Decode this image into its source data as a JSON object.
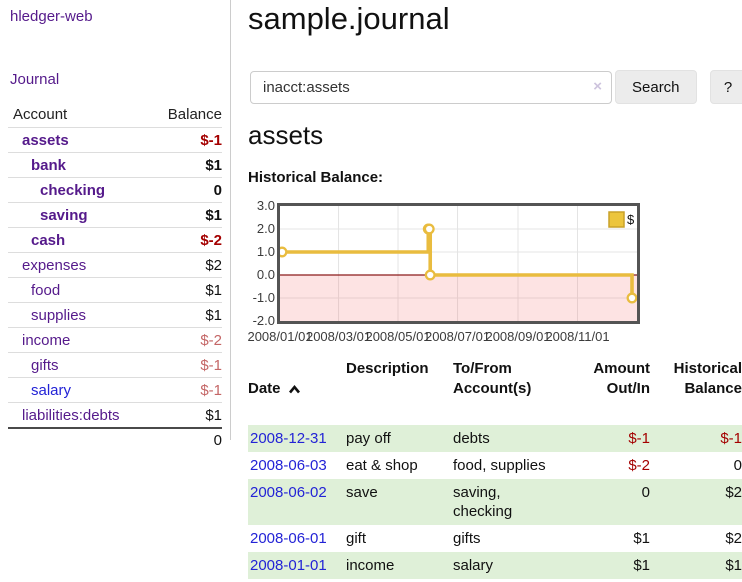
{
  "sidebar": {
    "brand": "hledger-web",
    "nav_journal": "Journal",
    "accounts_table": {
      "account_header": "Account",
      "balance_header": "Balance",
      "rows": [
        {
          "name": "assets",
          "level": 1,
          "bold": true,
          "balance": "$-1",
          "balance_tone": "neg-strong"
        },
        {
          "name": "bank",
          "level": 2,
          "bold": true,
          "balance": "$1",
          "balance_tone": ""
        },
        {
          "name": "checking",
          "level": 3,
          "bold": true,
          "balance": "0",
          "balance_tone": ""
        },
        {
          "name": "saving",
          "level": 3,
          "bold": true,
          "balance": "$1",
          "balance_tone": ""
        },
        {
          "name": "cash",
          "level": 2,
          "bold": true,
          "balance": "$-2",
          "balance_tone": "neg-strong"
        },
        {
          "name": "expenses",
          "level": 1,
          "bold": false,
          "balance": "$2",
          "balance_tone": ""
        },
        {
          "name": "food",
          "level": 2,
          "bold": false,
          "balance": "$1",
          "balance_tone": ""
        },
        {
          "name": "supplies",
          "level": 2,
          "bold": false,
          "balance": "$1",
          "balance_tone": ""
        },
        {
          "name": "income",
          "level": 1,
          "bold": false,
          "balance": "$-2",
          "balance_tone": "neg-soft"
        },
        {
          "name": "gifts",
          "level": 2,
          "bold": false,
          "balance": "$-1",
          "balance_tone": "neg-soft"
        },
        {
          "name": "salary",
          "level": 2,
          "bold": false,
          "balance": "$-1",
          "balance_tone": "neg-soft",
          "link_tone": "blue"
        },
        {
          "name": "liabilities:debts",
          "level": 1,
          "bold": false,
          "balance": "$1",
          "balance_tone": ""
        }
      ],
      "total": "0"
    }
  },
  "main": {
    "title": "sample.journal",
    "search": {
      "value": "inacct:assets",
      "clear_icon": "×",
      "search_button": "Search",
      "help_button": "?"
    },
    "account_heading": "assets",
    "chart_heading": "Historical Balance:"
  },
  "chart_data": {
    "type": "line",
    "style": "step",
    "title": "Historical Balance:",
    "series": [
      {
        "name": "$",
        "color": "#E9BC3F",
        "points": [
          [
            "2008/01/01",
            1
          ],
          [
            "2008/06/01",
            2
          ],
          [
            "2008/06/02",
            2
          ],
          [
            "2008/06/03",
            0
          ],
          [
            "2008/12/31",
            -1
          ]
        ]
      }
    ],
    "xlim": [
      "2008/01/01",
      "2009/01/01"
    ],
    "ylim": [
      -2.0,
      3.0
    ],
    "yticks": [
      "3.0",
      "2.0",
      "1.0",
      "0.0",
      "-1.0",
      "-2.0"
    ],
    "xticks": [
      "2008/01/01",
      "2008/03/01",
      "2008/05/01",
      "2008/07/01",
      "2008/09/01",
      "2008/11/01"
    ],
    "legend": {
      "position": "top-right",
      "label": "$"
    },
    "grid": true,
    "negative_region_fill": "rgba(242,100,100,0.18)",
    "zero_line_color": "#8B1B1B"
  },
  "register": {
    "headers": {
      "date": "Date",
      "description": "Description",
      "accounts": "To/From\nAccount(s)",
      "amount": "Amount\nOut/In",
      "balance": "Historical\nBalance"
    },
    "rows": [
      {
        "date": "2008-12-31",
        "description": "pay off",
        "accounts": "debts",
        "amount": "$-1",
        "balance": "$-1"
      },
      {
        "date": "2008-06-03",
        "description": "eat & shop",
        "accounts": "food, supplies",
        "amount": "$-2",
        "balance": "0"
      },
      {
        "date": "2008-06-02",
        "description": "save",
        "accounts": "saving,\nchecking",
        "amount": "0",
        "balance": "$2"
      },
      {
        "date": "2008-06-01",
        "description": "gift",
        "accounts": "gifts",
        "amount": "$1",
        "balance": "$2"
      },
      {
        "date": "2008-01-01",
        "description": "income",
        "accounts": "salary",
        "amount": "$1",
        "balance": "$1"
      }
    ]
  }
}
